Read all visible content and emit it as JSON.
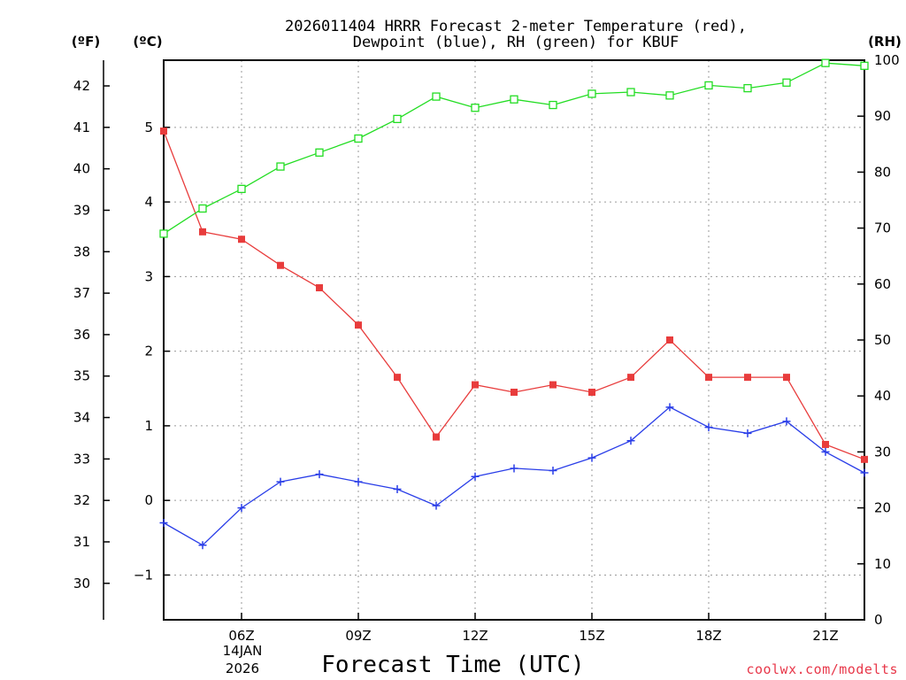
{
  "chart_data": {
    "type": "line",
    "title_line1": "2026011404 HRRR Forecast 2-meter Temperature (red),",
    "title_line2": "Dewpoint (blue), RH (green) for KBUF",
    "xlabel": "Forecast Time (UTC)",
    "credit": "coolwx.com/modelts",
    "units": {
      "fahrenheit": "(ºF)",
      "celsius": "(ºC)",
      "rh": "(RH)"
    },
    "x_hours": [
      4,
      5,
      6,
      7,
      8,
      9,
      10,
      11,
      12,
      13,
      14,
      15,
      16,
      17,
      18,
      19,
      20,
      21,
      22
    ],
    "xlim": [
      4,
      22
    ],
    "x_ticks": [
      {
        "hour": 6,
        "label": "06Z"
      },
      {
        "hour": 9,
        "label": "09Z"
      },
      {
        "hour": 12,
        "label": "12Z"
      },
      {
        "hour": 15,
        "label": "15Z"
      },
      {
        "hour": 18,
        "label": "18Z"
      },
      {
        "hour": 21,
        "label": "21Z"
      }
    ],
    "date_label_line1": "14JAN",
    "date_label_line2": "2026",
    "y_celsius_range": [
      -1.6,
      5.9
    ],
    "y_celsius_ticks": [
      -1,
      0,
      1,
      2,
      3,
      4,
      5
    ],
    "y_celsius_tick_labels": [
      "−1",
      "0",
      "1",
      "2",
      "3",
      "4",
      "5"
    ],
    "y_fahrenheit_ticks": [
      30,
      31,
      32,
      33,
      34,
      35,
      36,
      37,
      38,
      39,
      40,
      41,
      42
    ],
    "y_rh_range": [
      0,
      100
    ],
    "y_rh_ticks": [
      0,
      10,
      20,
      30,
      40,
      50,
      60,
      70,
      80,
      90,
      100
    ],
    "series": [
      {
        "name": "Temperature",
        "color": "#e83c3c",
        "marker": "filled-square",
        "axis": "celsius",
        "values": [
          4.95,
          3.6,
          3.5,
          3.15,
          2.85,
          2.35,
          1.65,
          0.85,
          1.55,
          1.45,
          1.55,
          1.45,
          1.65,
          2.15,
          1.65,
          1.65,
          1.65,
          0.75,
          0.55
        ]
      },
      {
        "name": "Dewpoint",
        "color": "#2a3ee8",
        "marker": "plus",
        "axis": "celsius",
        "values": [
          -0.3,
          -0.6,
          -0.1,
          0.25,
          0.35,
          0.25,
          0.15,
          -0.07,
          0.32,
          0.43,
          0.4,
          0.57,
          0.8,
          1.25,
          0.98,
          0.9,
          1.06,
          0.65,
          0.37
        ]
      },
      {
        "name": "RH",
        "color": "#22dd22",
        "marker": "open-square",
        "axis": "rh",
        "values": [
          69,
          73.5,
          77,
          81,
          83.5,
          86,
          89.5,
          93.5,
          91.5,
          93,
          92,
          94,
          94.3,
          93.7,
          95.5,
          95,
          96,
          99.5,
          99
        ]
      }
    ]
  }
}
